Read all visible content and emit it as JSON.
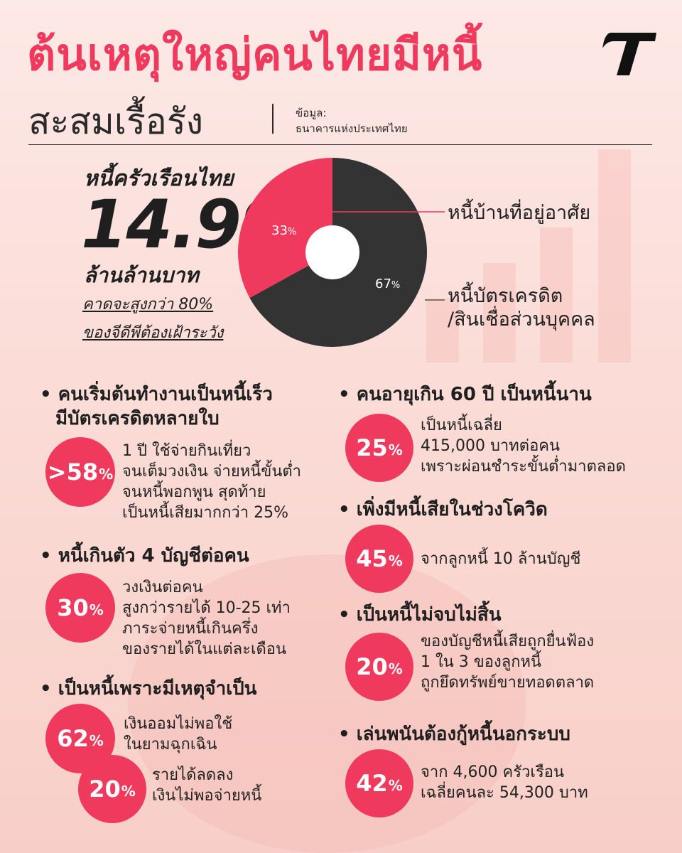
{
  "header": {
    "title_line1": "ต้นเหตุใหญ่คนไทยมีหนี้",
    "title_line2": "สะสมเรื้อรัง",
    "source_label": "ข้อมูล:",
    "source_name": "ธนาคารแห่งประเทศไทย"
  },
  "household": {
    "title": "หนี้ครัวเรือนไทย",
    "amount": "14.99",
    "unit": "ล้านล้านบาท",
    "note_line1": "คาดจะสูงกว่า 80%",
    "note_line2": "ของจีดีพีต้องเฝ้าระวัง"
  },
  "chart_data": {
    "type": "pie",
    "donut": true,
    "slices": [
      {
        "label": "หนี้บ้านที่อยู่อาศัย",
        "value": 33,
        "display": "33%",
        "color": "#ef3a5d"
      },
      {
        "label": "หนี้บัตรเครดิต\n/สินเชื่อส่วนบุคคล",
        "value": 67,
        "display": "67%",
        "color": "#333333"
      }
    ],
    "labels": {
      "housing": "หนี้บ้านที่อยู่อาศัย",
      "credit_line1": "หนี้บัตรเครดิต",
      "credit_line2": "/สินเชื่อส่วนบุคคล",
      "pct_small": "33",
      "pct_big": "67",
      "pct_sign": "%"
    }
  },
  "sections": {
    "s1": {
      "title_line1": "คนเริ่มต้นทำงานเป็นหนี้เร็ว",
      "title_line2": "มีบัตรเครดิตหลายใบ",
      "stat": ">58",
      "desc": [
        "1 ปี ใช้จ่ายกินเที่ยว",
        "จนเต็มวงเงิน จ่ายหนี้ขั้นต่ำ",
        "จนหนี้พอกพูน สุดท้าย",
        "เป็นหนี้เสียมากกว่า 25%"
      ]
    },
    "s2": {
      "title": "หนี้เกินตัว 4 บัญชีต่อคน",
      "stat": "30",
      "desc": [
        "วงเงินต่อคน",
        "สูงกว่ารายได้ 10-25 เท่า",
        "ภาระจ่ายหนี้เกินครึ่ง",
        "ของรายได้ในแต่ละเดือน"
      ]
    },
    "s3": {
      "title": "เป็นหนี้เพราะมีเหตุจำเป็น",
      "stat_a": "62",
      "desc_a": [
        "เงินออมไม่พอใช้",
        "ในยามฉุกเฉิน"
      ],
      "stat_b": "20",
      "desc_b": [
        "รายได้ลดลง",
        "เงินไม่พอจ่ายหนี้"
      ]
    },
    "s4": {
      "title": "คนอายุเกิน 60 ปี เป็นหนี้นาน",
      "stat": "25",
      "desc": [
        "เป็นหนี้เฉลี่ย",
        "415,000 บาทต่อคน",
        "เพราะผ่อนชำระขั้นต่ำมาตลอด"
      ]
    },
    "s5": {
      "title": "เพิ่งมีหนี้เสียในช่วงโควิด",
      "stat": "45",
      "desc": [
        "จากลูกหนี้ 10 ล้านบัญชี"
      ]
    },
    "s6": {
      "title": "เป็นหนี้ไม่จบไม่สิ้น",
      "stat": "20",
      "desc": [
        "ของบัญชีหนี้เสียถูกยื่นฟ้อง",
        "1 ใน 3 ของลูกหนี้",
        "ถูกยึดทรัพย์ขายทอดตลาด"
      ]
    },
    "s7": {
      "title": "เล่นพนันต้องกู้หนี้นอกระบบ",
      "stat": "42",
      "desc": [
        "จาก 4,600 ครัวเรือน",
        "เฉลี่ยคนละ 54,300 บาท"
      ]
    }
  },
  "colors": {
    "accent": "#ef3a5d",
    "dark": "#333333",
    "background": "#fbdcd7"
  },
  "icons": {
    "logo": "thairath-t-logo",
    "bullet": "bullet-dot"
  }
}
